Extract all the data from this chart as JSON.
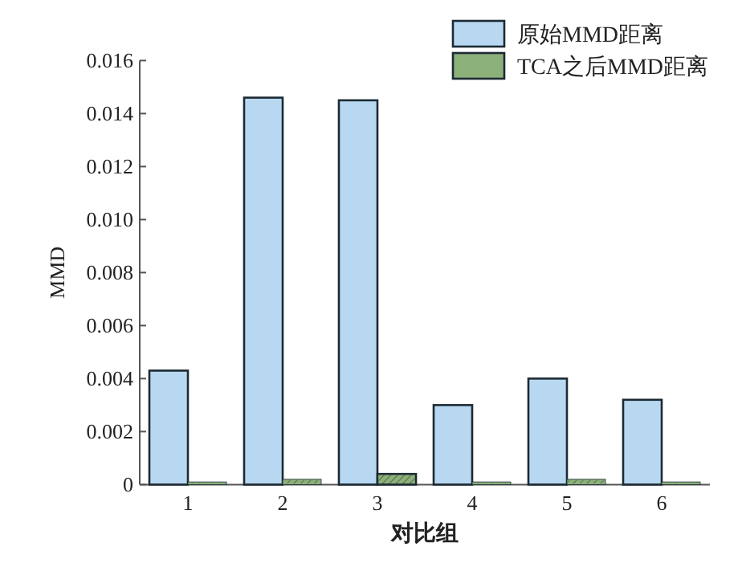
{
  "chart_data": {
    "type": "bar",
    "xlabel": "对比组",
    "ylabel": "MMD",
    "categories": [
      "1",
      "2",
      "3",
      "4",
      "5",
      "6"
    ],
    "series": [
      {
        "name": "原始MMD距离",
        "color": "#b8d8f2",
        "values": [
          0.0043,
          0.0146,
          0.0145,
          0.003,
          0.004,
          0.0032
        ]
      },
      {
        "name": "TCA之后MMD距离",
        "color": "#8cb07a",
        "values": [
          0.0001,
          0.0002,
          0.0004,
          0.0001,
          0.0002,
          0.0001
        ]
      }
    ],
    "ylim": [
      0,
      0.016
    ],
    "yticks": [
      0,
      0.002,
      0.004,
      0.006,
      0.008,
      {
        "value": 0.01,
        "label": "0.010"
      },
      0.012,
      0.014,
      0.016
    ],
    "legend": "top right"
  }
}
